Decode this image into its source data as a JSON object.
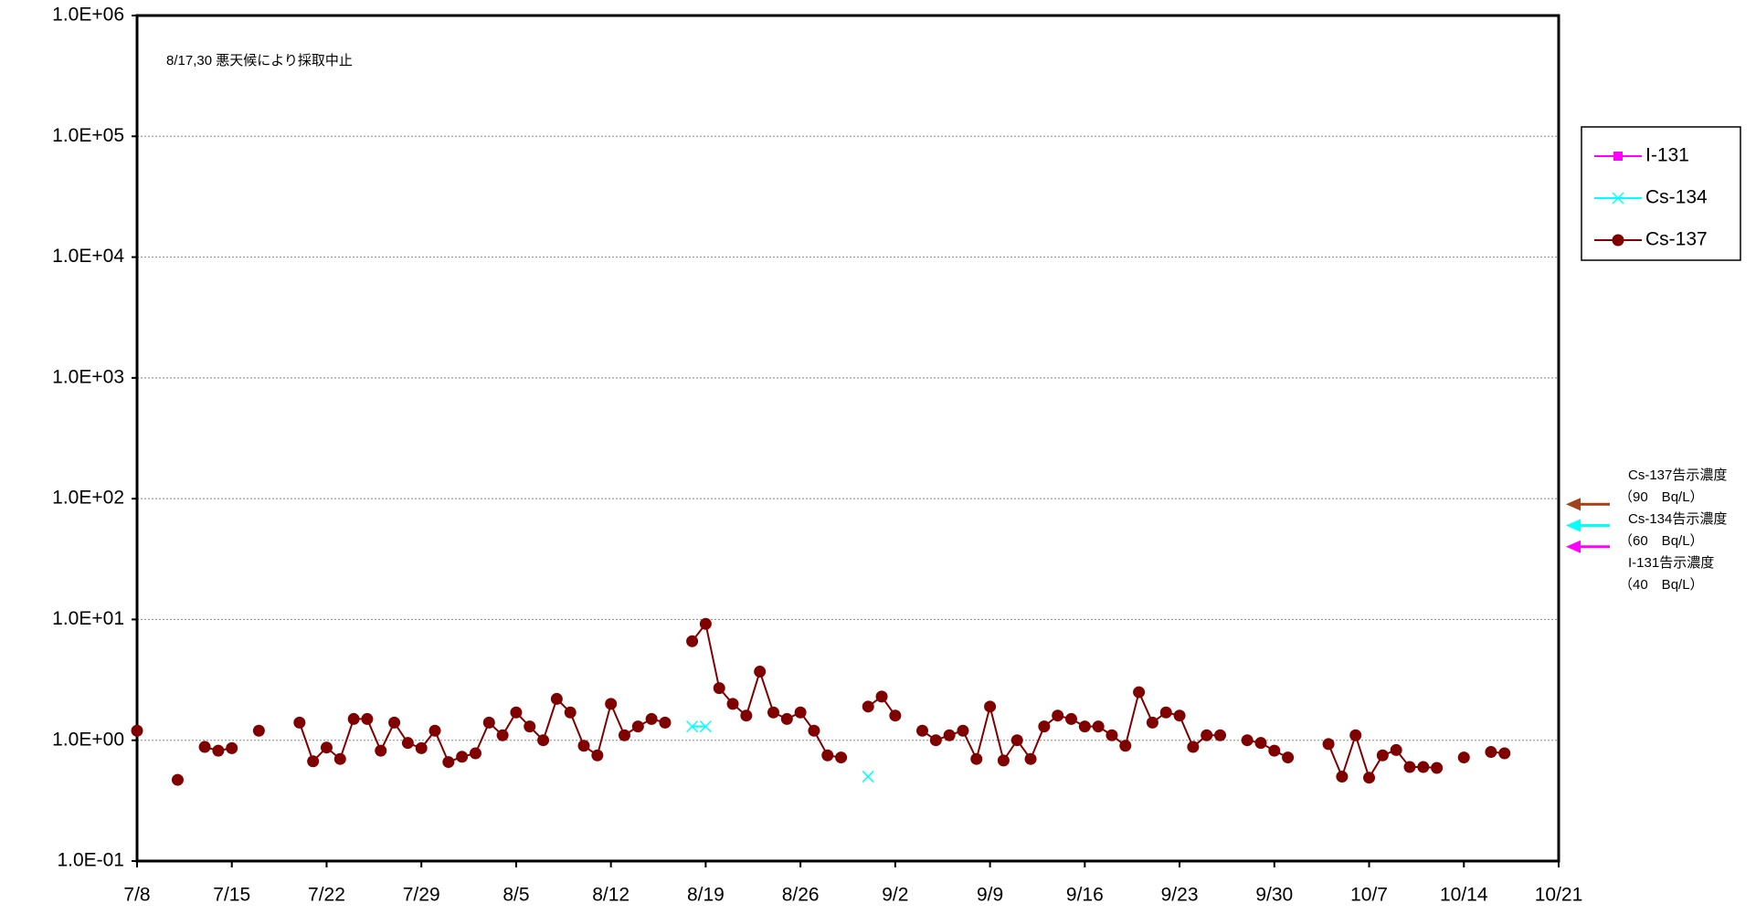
{
  "chart_data": {
    "type": "line",
    "annotation": "8/17,30 悪天候により採取中止",
    "x": [
      "7/8",
      "7/9",
      "7/10",
      "7/11",
      "7/12",
      "7/13",
      "7/14",
      "7/15",
      "7/16",
      "7/17",
      "7/18",
      "7/19",
      "7/20",
      "7/21",
      "7/22",
      "7/23",
      "7/24",
      "7/25",
      "7/26",
      "7/27",
      "7/28",
      "7/29",
      "7/30",
      "7/31",
      "8/1",
      "8/2",
      "8/3",
      "8/4",
      "8/5",
      "8/6",
      "8/7",
      "8/8",
      "8/9",
      "8/10",
      "8/11",
      "8/12",
      "8/13",
      "8/14",
      "8/15",
      "8/16",
      "8/17",
      "8/18",
      "8/19",
      "8/20",
      "8/21",
      "8/22",
      "8/23",
      "8/24",
      "8/25",
      "8/26",
      "8/27",
      "8/28",
      "8/29",
      "8/30",
      "8/31",
      "9/1",
      "9/2",
      "9/3",
      "9/4",
      "9/5",
      "9/6",
      "9/7",
      "9/8",
      "9/9",
      "9/10",
      "9/11",
      "9/12",
      "9/13",
      "9/14",
      "9/15",
      "9/16",
      "9/17",
      "9/18",
      "9/19",
      "9/20",
      "9/21",
      "9/22",
      "9/23",
      "9/24",
      "9/25",
      "9/26",
      "9/27",
      "9/28",
      "9/29",
      "9/30",
      "10/1",
      "10/2",
      "10/3",
      "10/4",
      "10/5",
      "10/6",
      "10/7",
      "10/8",
      "10/9",
      "10/10",
      "10/11",
      "10/12",
      "10/13",
      "10/14",
      "10/15",
      "10/16",
      "10/17"
    ],
    "series": [
      {
        "name": "I-131",
        "color": "#ff00ff",
        "marker": "square",
        "values": [
          null,
          null,
          null,
          null,
          null,
          null,
          null,
          null,
          null,
          null,
          null,
          null,
          null,
          null,
          null,
          null,
          null,
          null,
          null,
          null,
          null,
          null,
          null,
          null,
          null,
          null,
          null,
          null,
          null,
          null,
          null,
          null,
          null,
          null,
          null,
          null,
          null,
          null,
          null,
          null,
          null,
          null,
          null,
          null,
          null,
          null,
          null,
          null,
          null,
          null,
          null,
          null,
          null,
          null,
          null,
          null,
          null,
          null,
          null,
          null,
          null,
          null,
          null,
          null,
          null,
          null,
          null,
          null,
          null,
          null,
          null,
          null,
          null,
          null,
          null,
          null,
          null,
          null,
          null,
          null,
          null,
          null,
          null,
          null,
          null,
          null,
          null,
          null,
          null,
          null,
          null,
          null,
          null,
          null,
          null,
          null,
          null,
          null,
          null,
          null,
          null,
          null
        ]
      },
      {
        "name": "Cs-134",
        "color": "#00ffff",
        "marker": "x",
        "values": [
          null,
          null,
          null,
          null,
          null,
          null,
          null,
          null,
          null,
          null,
          null,
          null,
          null,
          null,
          null,
          null,
          null,
          null,
          null,
          null,
          null,
          null,
          null,
          null,
          null,
          null,
          null,
          null,
          null,
          null,
          null,
          null,
          null,
          null,
          null,
          null,
          null,
          null,
          null,
          null,
          null,
          1.3,
          1.3,
          null,
          null,
          null,
          null,
          null,
          null,
          null,
          null,
          null,
          null,
          null,
          0.5,
          null,
          null,
          null,
          null,
          null,
          null,
          null,
          null,
          null,
          null,
          null,
          null,
          null,
          null,
          null,
          null,
          null,
          null,
          null,
          null,
          null,
          null,
          null,
          null,
          null,
          null,
          null,
          null,
          null,
          null,
          null,
          null,
          null,
          null,
          null,
          null,
          null,
          null,
          null,
          null,
          null,
          null,
          null,
          null,
          null,
          null,
          null
        ]
      },
      {
        "name": "Cs-137",
        "color": "#800000",
        "marker": "circle",
        "values": [
          1.2,
          null,
          null,
          0.47,
          null,
          0.88,
          0.82,
          0.86,
          null,
          1.2,
          null,
          null,
          1.4,
          0.67,
          0.87,
          0.7,
          1.5,
          1.5,
          0.82,
          1.4,
          0.95,
          0.86,
          1.2,
          0.66,
          0.73,
          0.78,
          1.4,
          1.1,
          1.7,
          1.3,
          1.0,
          2.2,
          1.7,
          0.9,
          0.75,
          2.0,
          1.1,
          1.3,
          1.5,
          1.4,
          null,
          6.6,
          9.2,
          2.7,
          2.0,
          1.6,
          3.7,
          1.7,
          1.5,
          1.7,
          1.2,
          0.75,
          0.72,
          null,
          1.9,
          2.3,
          1.6,
          null,
          1.2,
          1.0,
          1.1,
          1.2,
          0.7,
          1.9,
          0.68,
          1.0,
          0.7,
          1.3,
          1.6,
          1.5,
          1.3,
          1.3,
          1.1,
          0.9,
          2.5,
          1.4,
          1.7,
          1.6,
          0.88,
          1.1,
          1.1,
          null,
          1.0,
          0.95,
          0.82,
          0.72,
          null,
          null,
          0.93,
          0.5,
          1.1,
          0.49,
          0.75,
          0.83,
          0.6,
          0.6,
          0.59,
          null,
          0.72,
          null,
          0.8,
          0.78
        ]
      }
    ],
    "xlim": [
      "7/8",
      "10/21"
    ],
    "xticks": [
      "7/8",
      "7/15",
      "7/22",
      "7/29",
      "8/5",
      "8/12",
      "8/19",
      "8/26",
      "9/2",
      "9/9",
      "9/16",
      "9/23",
      "9/30",
      "10/7",
      "10/14",
      "10/21"
    ],
    "ylim": [
      0.1,
      1000000
    ],
    "log_y": true,
    "yticks": [
      {
        "value": 0.1,
        "label": "1.0E-01"
      },
      {
        "value": 1,
        "label": "1.0E+00"
      },
      {
        "value": 10,
        "label": "1.0E+01"
      },
      {
        "value": 100,
        "label": "1.0E+02"
      },
      {
        "value": 1000,
        "label": "1.0E+03"
      },
      {
        "value": 10000,
        "label": "1.0E+04"
      },
      {
        "value": 100000,
        "label": "1.0E+05"
      },
      {
        "value": 1000000,
        "label": "1.0E+06"
      }
    ],
    "grid": true,
    "legend": "right",
    "references": [
      {
        "label": "Cs-137告示濃度",
        "value": 90,
        "value_label": "（90　Bq/L）",
        "color": "#a0421a"
      },
      {
        "label": "Cs-134告示濃度",
        "value": 60,
        "value_label": "（60　Bq/L）",
        "color": "#00ffff"
      },
      {
        "label": "I-131告示濃度",
        "value": 40,
        "value_label": "（40　Bq/L）",
        "color": "#ff00ff"
      }
    ]
  }
}
